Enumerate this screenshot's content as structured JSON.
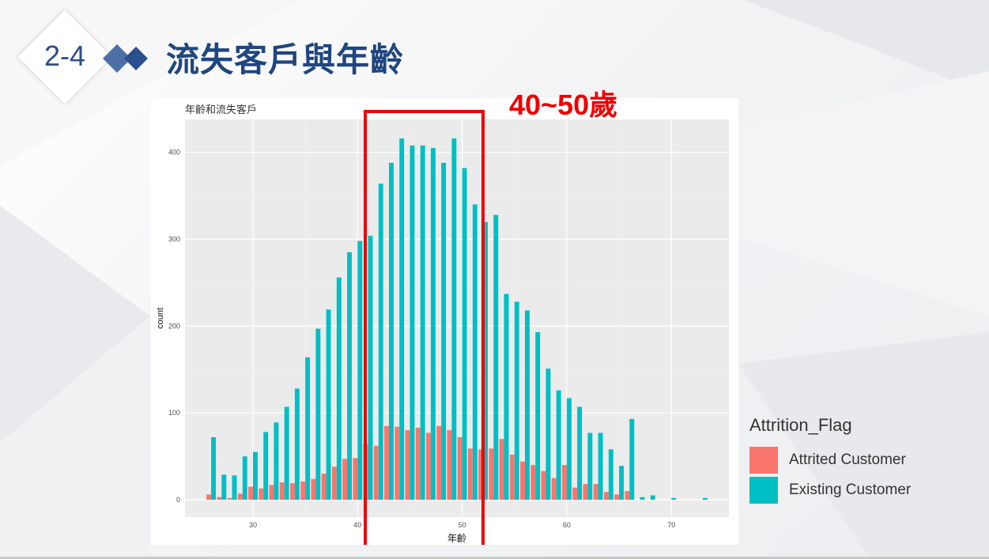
{
  "slide": {
    "number": "2-4",
    "title": "流失客戶與年齡",
    "annotation": "40~50歲"
  },
  "colors": {
    "title": "#1f4680",
    "attrited": "#f8766d",
    "existing": "#00bfc4",
    "highlight": "#ee0000",
    "panel": "#ebebeb"
  },
  "chart_data": {
    "type": "bar",
    "title": "年齡和流失客戶",
    "xlabel": "年齡",
    "ylabel": "count",
    "xlim": [
      23.5,
      75.5
    ],
    "ylim": [
      -20,
      438
    ],
    "xticks": [
      30,
      40,
      50,
      60,
      70
    ],
    "yticks": [
      0,
      100,
      200,
      300,
      400
    ],
    "grid": true,
    "legend": {
      "title": "Attrition_Flag",
      "position": "right",
      "entries": [
        "Attrited Customer",
        "Existing Customer"
      ]
    },
    "x": [
      26,
      27,
      28,
      29,
      30,
      31,
      32,
      33,
      34,
      35,
      36,
      37,
      38,
      39,
      40,
      41,
      42,
      43,
      44,
      45,
      46,
      47,
      48,
      49,
      50,
      51,
      52,
      53,
      54,
      55,
      56,
      57,
      58,
      59,
      60,
      61,
      62,
      63,
      64,
      65,
      66,
      67,
      68,
      70,
      73
    ],
    "series": [
      {
        "name": "Attrited Customer",
        "values": [
          6,
          3,
          2,
          7,
          15,
          13,
          17,
          20,
          19,
          21,
          24,
          30,
          38,
          47,
          48,
          64,
          62,
          85,
          84,
          80,
          83,
          77,
          85,
          80,
          72,
          59,
          58,
          59,
          70,
          52,
          44,
          40,
          33,
          25,
          40,
          14,
          18,
          18,
          9,
          6,
          10,
          0,
          0,
          0,
          0
        ]
      },
      {
        "name": "Existing Customer",
        "values": [
          72,
          29,
          28,
          50,
          55,
          78,
          89,
          107,
          128,
          164,
          197,
          219,
          256,
          285,
          298,
          304,
          364,
          388,
          416,
          408,
          408,
          405,
          388,
          416,
          382,
          340,
          320,
          328,
          237,
          228,
          218,
          193,
          151,
          126,
          117,
          107,
          77,
          77,
          58,
          39,
          93,
          3,
          5,
          2,
          2
        ]
      }
    ]
  }
}
